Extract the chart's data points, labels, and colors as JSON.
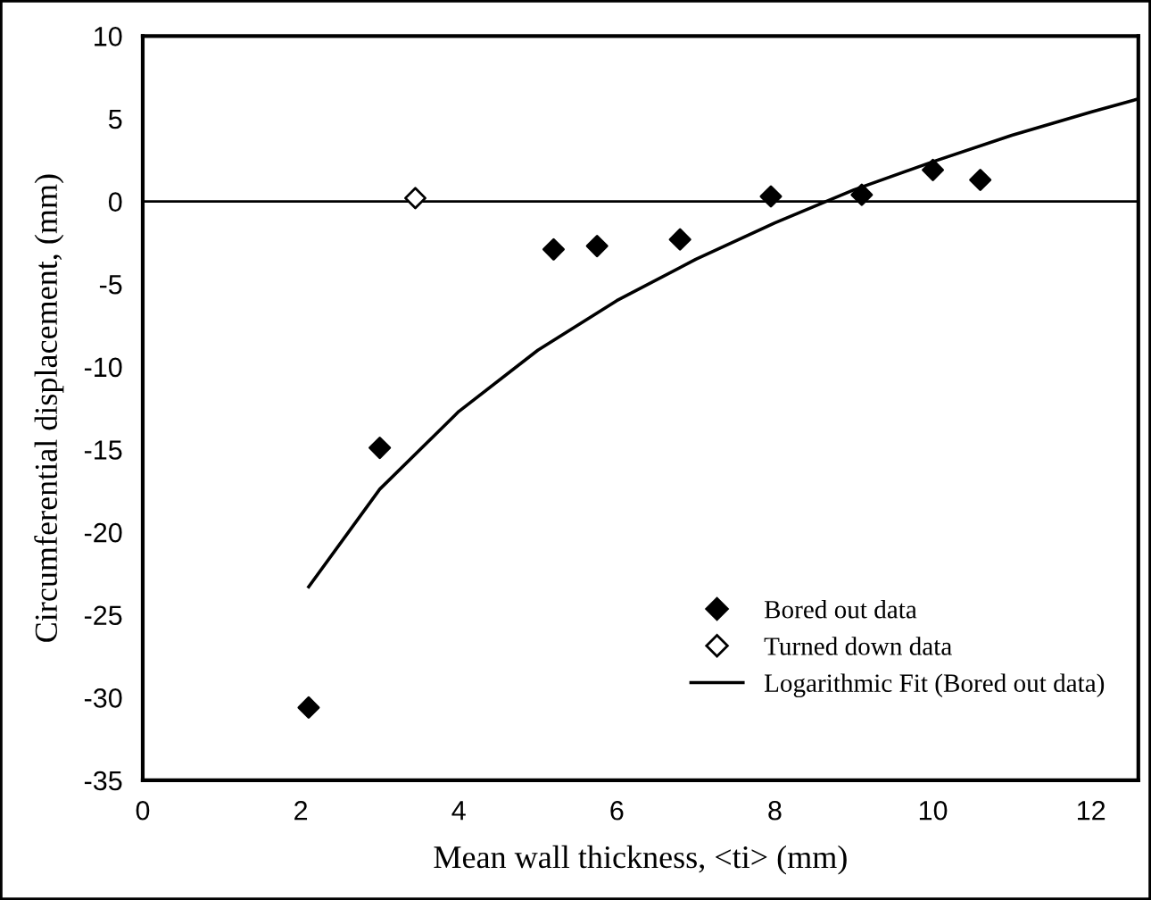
{
  "chart_data": {
    "type": "scatter",
    "xlabel": "Mean wall thickness, <ti> (mm)",
    "ylabel": "Circumferential displacement, (mm)",
    "xlim": [
      0,
      12.6
    ],
    "xticks": [
      0,
      2,
      4,
      6,
      8,
      10,
      12
    ],
    "ylim": [
      -35,
      10
    ],
    "yticks": [
      -35,
      -30,
      -25,
      -20,
      -15,
      -10,
      -5,
      0,
      5,
      10
    ],
    "grid": false,
    "legend": "bottom right",
    "ref_lines": [
      {
        "axis": "y",
        "value": 0,
        "color": "#000000"
      }
    ],
    "series": [
      {
        "name": "Bored out data",
        "marker": "diamond",
        "color": "#000000",
        "x": [
          2.1,
          3.0,
          5.2,
          5.75,
          6.8,
          7.95,
          9.1,
          10.0,
          10.6
        ],
        "values": [
          -30.6,
          -14.9,
          -2.9,
          -2.7,
          -2.3,
          0.3,
          0.4,
          1.9,
          1.3
        ]
      },
      {
        "name": "Turned down data",
        "marker": "diamond",
        "color": "#ffffff",
        "x": [
          3.45
        ],
        "values": [
          0.2
        ]
      },
      {
        "name": "Logarithmic Fit (Bored out data)",
        "type": "line",
        "marker": "none",
        "color": "#000000",
        "x": [
          2.1,
          3,
          4,
          5,
          6,
          7,
          8,
          9,
          10,
          11,
          12,
          12.6
        ],
        "values": [
          -23.3,
          -17.4,
          -12.7,
          -9.0,
          -6.0,
          -3.5,
          -1.3,
          0.7,
          2.4,
          4.0,
          5.4,
          6.2
        ]
      }
    ]
  }
}
